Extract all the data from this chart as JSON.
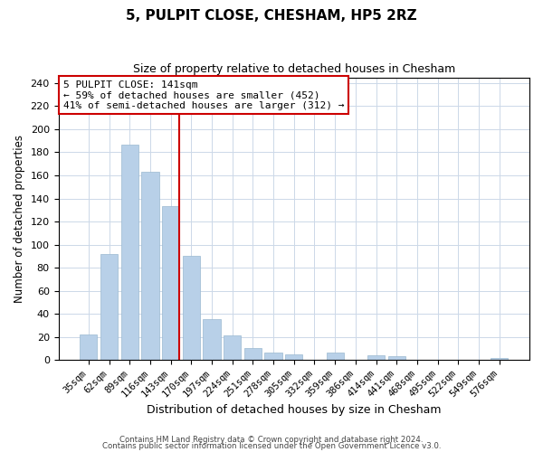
{
  "title": "5, PULPIT CLOSE, CHESHAM, HP5 2RZ",
  "subtitle": "Size of property relative to detached houses in Chesham",
  "xlabel": "Distribution of detached houses by size in Chesham",
  "ylabel": "Number of detached properties",
  "bar_labels": [
    "35sqm",
    "62sqm",
    "89sqm",
    "116sqm",
    "143sqm",
    "170sqm",
    "197sqm",
    "224sqm",
    "251sqm",
    "278sqm",
    "305sqm",
    "332sqm",
    "359sqm",
    "386sqm",
    "414sqm",
    "441sqm",
    "468sqm",
    "495sqm",
    "522sqm",
    "549sqm",
    "576sqm"
  ],
  "bar_values": [
    22,
    92,
    187,
    163,
    133,
    90,
    35,
    21,
    10,
    6,
    5,
    0,
    6,
    0,
    4,
    3,
    0,
    0,
    0,
    0,
    2
  ],
  "bar_color": "#b8d0e8",
  "bar_edge_color": "#9ab8d0",
  "vline_index": 4,
  "vline_color": "#cc0000",
  "ylim": [
    0,
    245
  ],
  "yticks": [
    0,
    20,
    40,
    60,
    80,
    100,
    120,
    140,
    160,
    180,
    200,
    220,
    240
  ],
  "annotation_title": "5 PULPIT CLOSE: 141sqm",
  "annotation_line1": "← 59% of detached houses are smaller (452)",
  "annotation_line2": "41% of semi-detached houses are larger (312) →",
  "annotation_box_color": "#ffffff",
  "annotation_box_edge": "#cc0000",
  "footer1": "Contains HM Land Registry data © Crown copyright and database right 2024.",
  "footer2": "Contains public sector information licensed under the Open Government Licence v3.0.",
  "background_color": "#ffffff",
  "grid_color": "#ccd8e8"
}
